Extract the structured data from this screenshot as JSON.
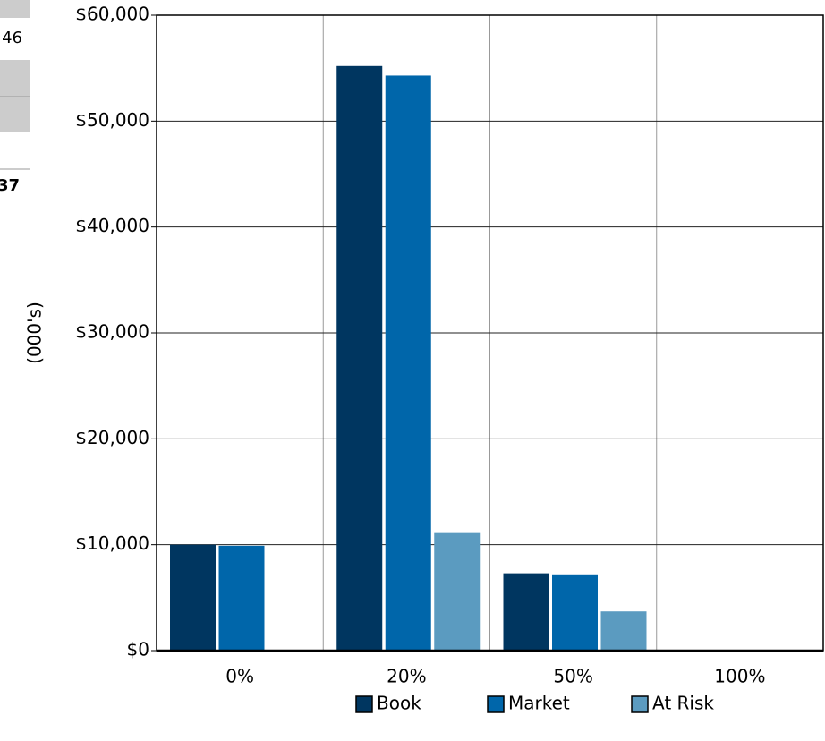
{
  "table": {
    "cells": [
      "46",
      "37"
    ]
  },
  "chart_data": {
    "type": "bar",
    "y_axis_label": "(000's)",
    "categories": [
      "0%",
      "20%",
      "50%",
      "100%"
    ],
    "series": [
      {
        "name": "Book",
        "color": "#003660",
        "values": [
          10000,
          55200,
          7300,
          0
        ]
      },
      {
        "name": "Market",
        "color": "#0066aa",
        "values": [
          9900,
          54300,
          7200,
          0
        ]
      },
      {
        "name": "At Risk",
        "color": "#5b9bc0",
        "values": [
          0,
          11100,
          3700,
          0
        ]
      }
    ],
    "ylim": [
      0,
      60000
    ],
    "yticks": [
      {
        "value": 0,
        "label": "$0"
      },
      {
        "value": 10000,
        "label": "$10,000"
      },
      {
        "value": 20000,
        "label": "$20,000"
      },
      {
        "value": 30000,
        "label": "$30,000"
      },
      {
        "value": 40000,
        "label": "$40,000"
      },
      {
        "value": 50000,
        "label": "$50,000"
      },
      {
        "value": 60000,
        "label": "$60,000"
      }
    ],
    "grid": true,
    "legend": "bottom"
  }
}
